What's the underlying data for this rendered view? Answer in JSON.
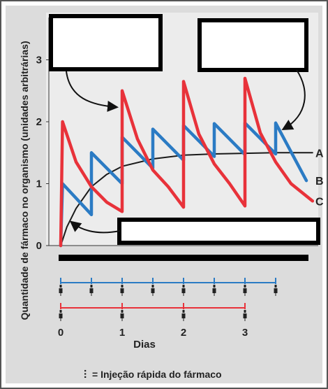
{
  "chart_data": {
    "type": "line",
    "ylabel": "Quantidade de fármaco no organismo (unidades arbitrárias)",
    "xlabel": "Dias",
    "yticks": [
      "0",
      "1",
      "2",
      "3"
    ],
    "xticks": [
      "0",
      "1",
      "2",
      "3"
    ],
    "ylim": [
      0,
      3.3
    ],
    "xlim": [
      0,
      4.1
    ],
    "grid": false,
    "series": [
      {
        "name": "A",
        "color": "#1a1a1a",
        "points": [
          [
            0,
            0
          ],
          [
            0.1,
            0.3
          ],
          [
            0.25,
            0.6
          ],
          [
            0.5,
            0.95
          ],
          [
            0.75,
            1.15
          ],
          [
            1,
            1.28
          ],
          [
            1.5,
            1.4
          ],
          [
            2,
            1.46
          ],
          [
            2.5,
            1.48
          ],
          [
            3,
            1.49
          ],
          [
            3.5,
            1.5
          ],
          [
            4.1,
            1.5
          ]
        ]
      },
      {
        "name": "B",
        "color": "#2b7bc4",
        "points": [
          [
            0,
            0
          ],
          [
            0.03,
            1
          ],
          [
            0.5,
            0.5
          ],
          [
            0.5,
            1.5
          ],
          [
            1,
            1
          ],
          [
            1,
            1.75
          ],
          [
            1.5,
            1.25
          ],
          [
            1.5,
            1.88
          ],
          [
            2,
            1.38
          ],
          [
            2,
            1.94
          ],
          [
            2.5,
            1.44
          ],
          [
            2.5,
            1.97
          ],
          [
            3,
            1.47
          ],
          [
            3,
            1.98
          ],
          [
            3.5,
            1.48
          ],
          [
            3.5,
            1.98
          ],
          [
            4,
            1.05
          ]
        ]
      },
      {
        "name": "C",
        "color": "#e8323a",
        "points": [
          [
            0,
            0
          ],
          [
            0.03,
            2
          ],
          [
            0.25,
            1.35
          ],
          [
            0.5,
            0.95
          ],
          [
            0.75,
            0.7
          ],
          [
            1,
            0.55
          ],
          [
            1,
            2.5
          ],
          [
            1.25,
            1.72
          ],
          [
            1.5,
            1.22
          ],
          [
            1.75,
            0.95
          ],
          [
            2,
            0.62
          ],
          [
            2,
            2.65
          ],
          [
            2.25,
            1.8
          ],
          [
            2.5,
            1.32
          ],
          [
            2.75,
            1.0
          ],
          [
            3,
            0.64
          ],
          [
            3,
            2.7
          ],
          [
            3.25,
            1.82
          ],
          [
            3.5,
            1.35
          ],
          [
            3.75,
            1.0
          ],
          [
            4.1,
            0.72
          ]
        ]
      }
    ],
    "injections": {
      "blue": [
        0,
        0.5,
        1,
        1.5,
        2,
        2.5,
        3,
        3.5
      ],
      "red": [
        0,
        1,
        2,
        3
      ]
    }
  },
  "legend": {
    "symbol": "⫶",
    "text": "= Injeção rápida do fármaco"
  }
}
